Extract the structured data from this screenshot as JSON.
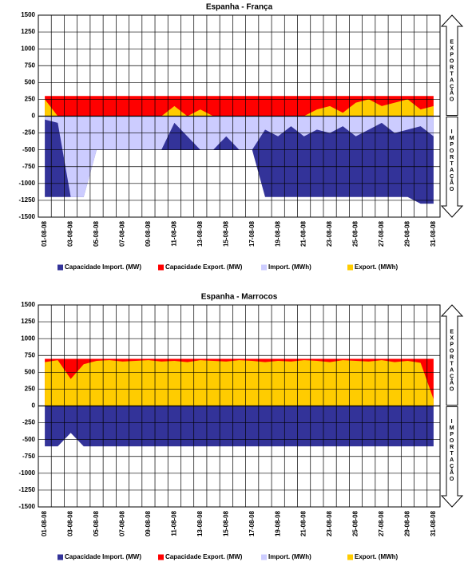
{
  "chart_data": [
    {
      "type": "area",
      "title": "Espanha - França",
      "categories": [
        "01-08-08",
        null,
        "03-08-08",
        null,
        "05-08-08",
        null,
        "07-08-08",
        null,
        "09-08-08",
        null,
        "11-08-08",
        null,
        "13-08-08",
        null,
        "15-08-08",
        null,
        "17-08-08",
        null,
        "19-08-08",
        null,
        "21-08-08",
        null,
        "23-08-08",
        null,
        "25-08-08",
        null,
        "27-08-08",
        null,
        "29-08-08",
        null,
        "31-08-08"
      ],
      "series": [
        {
          "name": "Capacidade Import. (MW)",
          "color": "#333399",
          "values": [
            -1200,
            -1200,
            -1200,
            -1200,
            -500,
            -500,
            -500,
            -500,
            -500,
            -500,
            -500,
            -500,
            -500,
            -500,
            -500,
            -500,
            -500,
            -1200,
            -1200,
            -1200,
            -1200,
            -1200,
            -1200,
            -1200,
            -1200,
            -1200,
            -1200,
            -1200,
            -1200,
            -1300,
            -1300
          ]
        },
        {
          "name": "Capacidade Export. (MW)",
          "color": "#ff0000",
          "values": [
            300,
            300,
            300,
            300,
            300,
            300,
            300,
            300,
            300,
            300,
            300,
            300,
            300,
            300,
            300,
            300,
            300,
            300,
            300,
            300,
            300,
            300,
            300,
            300,
            300,
            300,
            300,
            300,
            300,
            300,
            300
          ]
        },
        {
          "name": "Import. (MWh)",
          "color": "#ccccff",
          "values": [
            -50,
            -100,
            -1200,
            -1200,
            -500,
            -500,
            -500,
            -500,
            -500,
            -500,
            -100,
            -300,
            -500,
            -500,
            -300,
            -500,
            -500,
            -200,
            -300,
            -150,
            -300,
            -200,
            -250,
            -150,
            -300,
            -200,
            -100,
            -250,
            -200,
            -150,
            -300
          ]
        },
        {
          "name": "Export. (MWh)",
          "color": "#ffcc00",
          "values": [
            250,
            0,
            0,
            0,
            0,
            0,
            0,
            0,
            0,
            0,
            150,
            0,
            100,
            0,
            0,
            0,
            0,
            0,
            0,
            0,
            0,
            100,
            150,
            50,
            200,
            250,
            150,
            200,
            250,
            100,
            150
          ]
        }
      ],
      "ylim": [
        -1500,
        1500
      ],
      "yticks": [
        -1500,
        -1250,
        -1000,
        -750,
        -500,
        -250,
        0,
        250,
        500,
        750,
        1000,
        1250,
        1500
      ],
      "grid": true,
      "side_labels": [
        "EXPORTAÇÃO",
        "IMPORTAÇÃO"
      ]
    },
    {
      "type": "area",
      "title": "Espanha - Marrocos",
      "categories": [
        "01-08-08",
        null,
        "03-08-08",
        null,
        "05-08-08",
        null,
        "07-08-08",
        null,
        "09-08-08",
        null,
        "11-08-08",
        null,
        "13-08-08",
        null,
        "15-08-08",
        null,
        "17-08-08",
        null,
        "19-08-08",
        null,
        "21-08-08",
        null,
        "23-08-08",
        null,
        "25-08-08",
        null,
        "27-08-08",
        null,
        "29-08-08",
        null,
        "31-08-08"
      ],
      "series": [
        {
          "name": "Capacidade Import. (MW)",
          "color": "#333399",
          "values": [
            -600,
            -600,
            -400,
            -600,
            -600,
            -600,
            -600,
            -600,
            -600,
            -600,
            -600,
            -600,
            -600,
            -600,
            -600,
            -600,
            -600,
            -600,
            -600,
            -600,
            -600,
            -600,
            -600,
            -600,
            -600,
            -600,
            -600,
            -600,
            -600,
            -600,
            -600
          ]
        },
        {
          "name": "Capacidade Export. (MW)",
          "color": "#ff0000",
          "values": [
            700,
            700,
            700,
            700,
            700,
            700,
            700,
            700,
            700,
            700,
            700,
            700,
            700,
            700,
            700,
            700,
            700,
            700,
            700,
            700,
            700,
            700,
            700,
            700,
            700,
            700,
            700,
            700,
            700,
            700,
            700
          ]
        },
        {
          "name": "Import. (MWh)",
          "color": "#ccccff",
          "values": [
            0,
            0,
            0,
            0,
            0,
            0,
            0,
            0,
            0,
            0,
            0,
            0,
            0,
            0,
            0,
            0,
            0,
            0,
            0,
            0,
            0,
            0,
            0,
            0,
            0,
            0,
            0,
            0,
            0,
            0,
            0
          ]
        },
        {
          "name": "Export. (MWh)",
          "color": "#ffcc00",
          "values": [
            650,
            680,
            400,
            620,
            670,
            680,
            660,
            670,
            680,
            660,
            670,
            650,
            680,
            670,
            660,
            680,
            670,
            650,
            670,
            660,
            680,
            670,
            650,
            680,
            670,
            660,
            680,
            650,
            670,
            640,
            100
          ]
        }
      ],
      "ylim": [
        -1500,
        1500
      ],
      "yticks": [
        -1500,
        -1250,
        -1000,
        -750,
        -500,
        -250,
        0,
        250,
        500,
        750,
        1000,
        1250,
        1500
      ],
      "grid": true,
      "side_labels": [
        "EXPORTAÇÃO",
        "IMPORTAÇÃO"
      ]
    }
  ]
}
